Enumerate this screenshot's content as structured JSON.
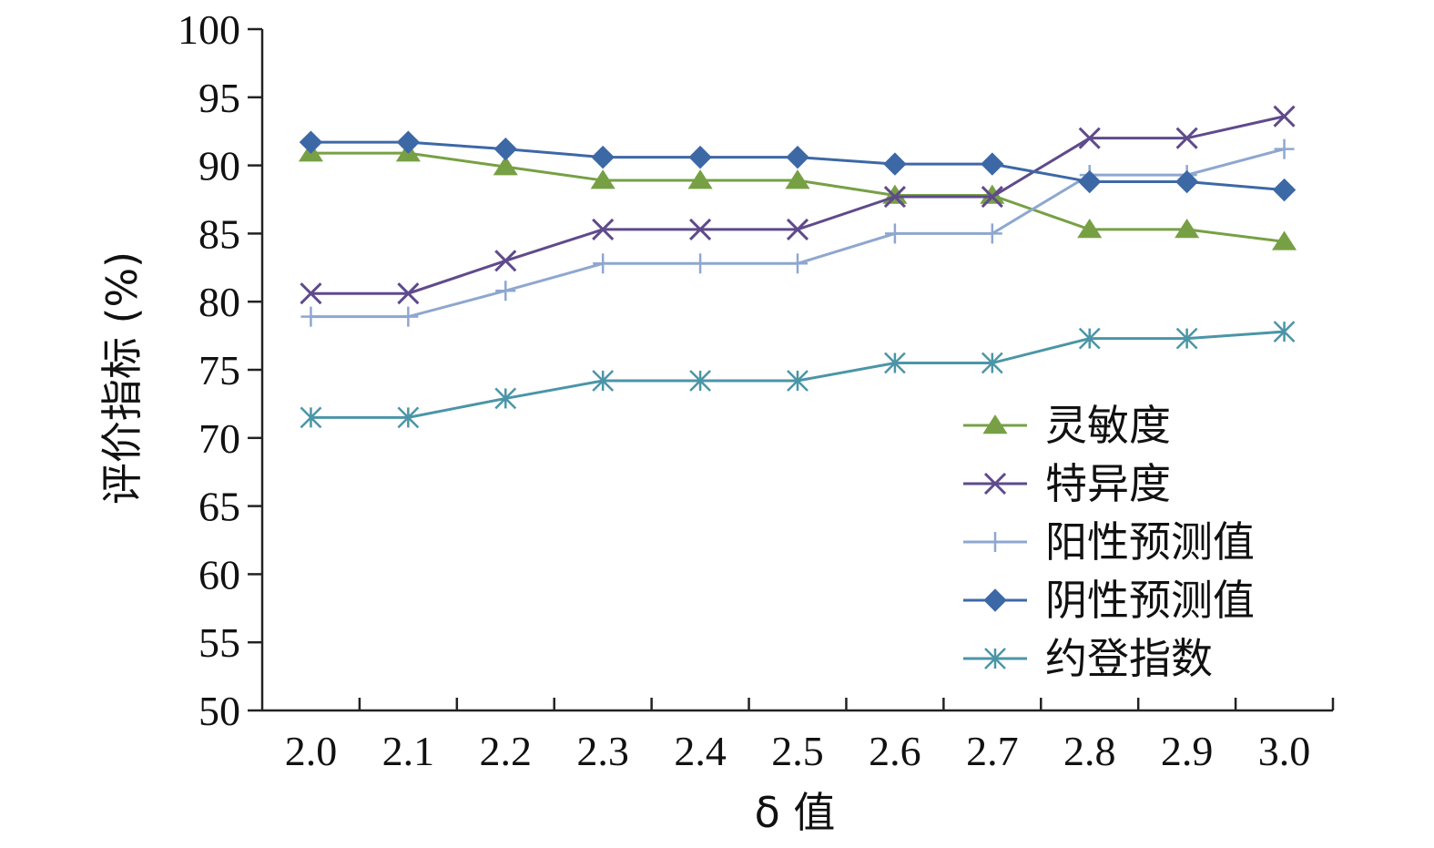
{
  "chart_data": {
    "type": "line",
    "xlabel": "δ 值",
    "ylabel": "评价指标 (%)",
    "ylim": [
      50,
      100
    ],
    "yticks": [
      50,
      55,
      60,
      65,
      70,
      75,
      80,
      85,
      90,
      95,
      100
    ],
    "categories": [
      "2.0",
      "2.1",
      "2.2",
      "2.3",
      "2.4",
      "2.5",
      "2.6",
      "2.7",
      "2.8",
      "2.9",
      "3.0"
    ],
    "grid": false,
    "legend_position": "bottom-right",
    "series": [
      {
        "name": "灵敏度",
        "marker": "triangle",
        "color": "#77a045",
        "values": [
          90.9,
          90.9,
          89.9,
          88.9,
          88.9,
          88.9,
          87.8,
          87.8,
          85.3,
          85.3,
          84.4
        ]
      },
      {
        "name": "特异度",
        "marker": "x",
        "color": "#5f4a8b",
        "values": [
          80.6,
          80.6,
          83.0,
          85.3,
          85.3,
          85.3,
          87.7,
          87.7,
          92.0,
          92.0,
          93.6
        ]
      },
      {
        "name": "阳性预测值",
        "marker": "plus",
        "color": "#8ea7d0",
        "values": [
          78.9,
          78.9,
          80.8,
          82.8,
          82.8,
          82.8,
          85.0,
          85.0,
          89.3,
          89.3,
          91.2
        ]
      },
      {
        "name": "阴性预测值",
        "marker": "diamond",
        "color": "#3d68a6",
        "values": [
          91.7,
          91.7,
          91.2,
          90.6,
          90.6,
          90.6,
          90.1,
          90.1,
          88.8,
          88.8,
          88.2
        ]
      },
      {
        "name": "约登指数",
        "marker": "asterisk",
        "color": "#4b95a7",
        "values": [
          71.5,
          71.5,
          72.9,
          74.2,
          74.2,
          74.2,
          75.5,
          75.5,
          77.3,
          77.3,
          77.8
        ]
      }
    ]
  }
}
